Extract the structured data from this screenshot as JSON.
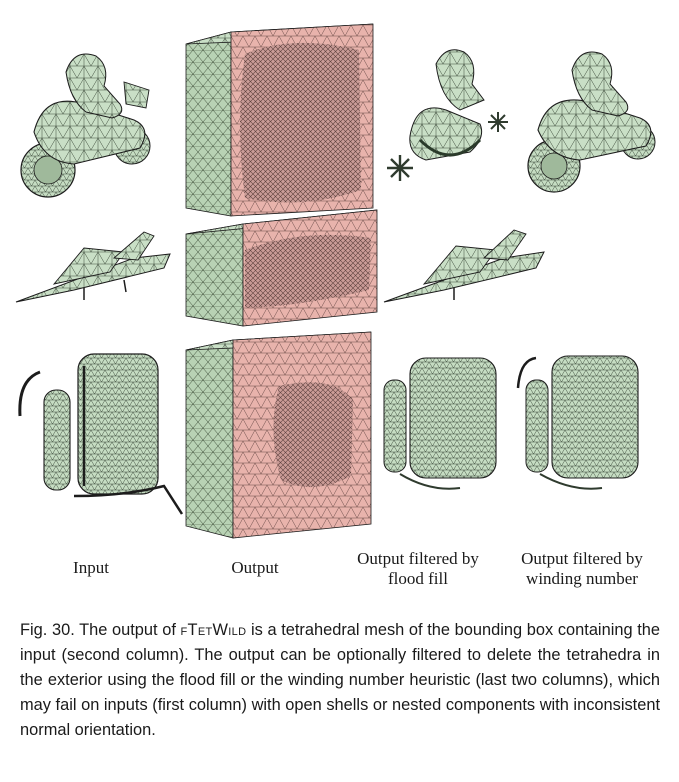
{
  "figure": {
    "column_labels": [
      "Input",
      "Output",
      "Output filtered by flood fill",
      "Output filtered by winding number"
    ],
    "label_lines": {
      "input": "Input",
      "output": "Output",
      "flood_line1": "Output filtered by",
      "flood_line2": "flood fill",
      "winding_line1": "Output filtered by",
      "winding_line2": "winding number"
    },
    "rows": [
      "motorbike",
      "fighter-jet",
      "backpack"
    ],
    "colors": {
      "surface": "#c9dfc6",
      "cut": "#e8b3ac",
      "edge": "#2f3b2e",
      "outline": "#1c1c1c"
    }
  },
  "caption": {
    "prefix": "Fig. 30.  The output of ",
    "method": "fTetWild",
    "body": " is a tetrahedral mesh of the bounding box containing the input (second column). The output can be optionally filtered to delete the tetrahedra in the exterior using the flood fill or the winding number heuristic (last two columns), which may fail on inputs (first column) with open shells or nested components with inconsistent normal orientation."
  }
}
